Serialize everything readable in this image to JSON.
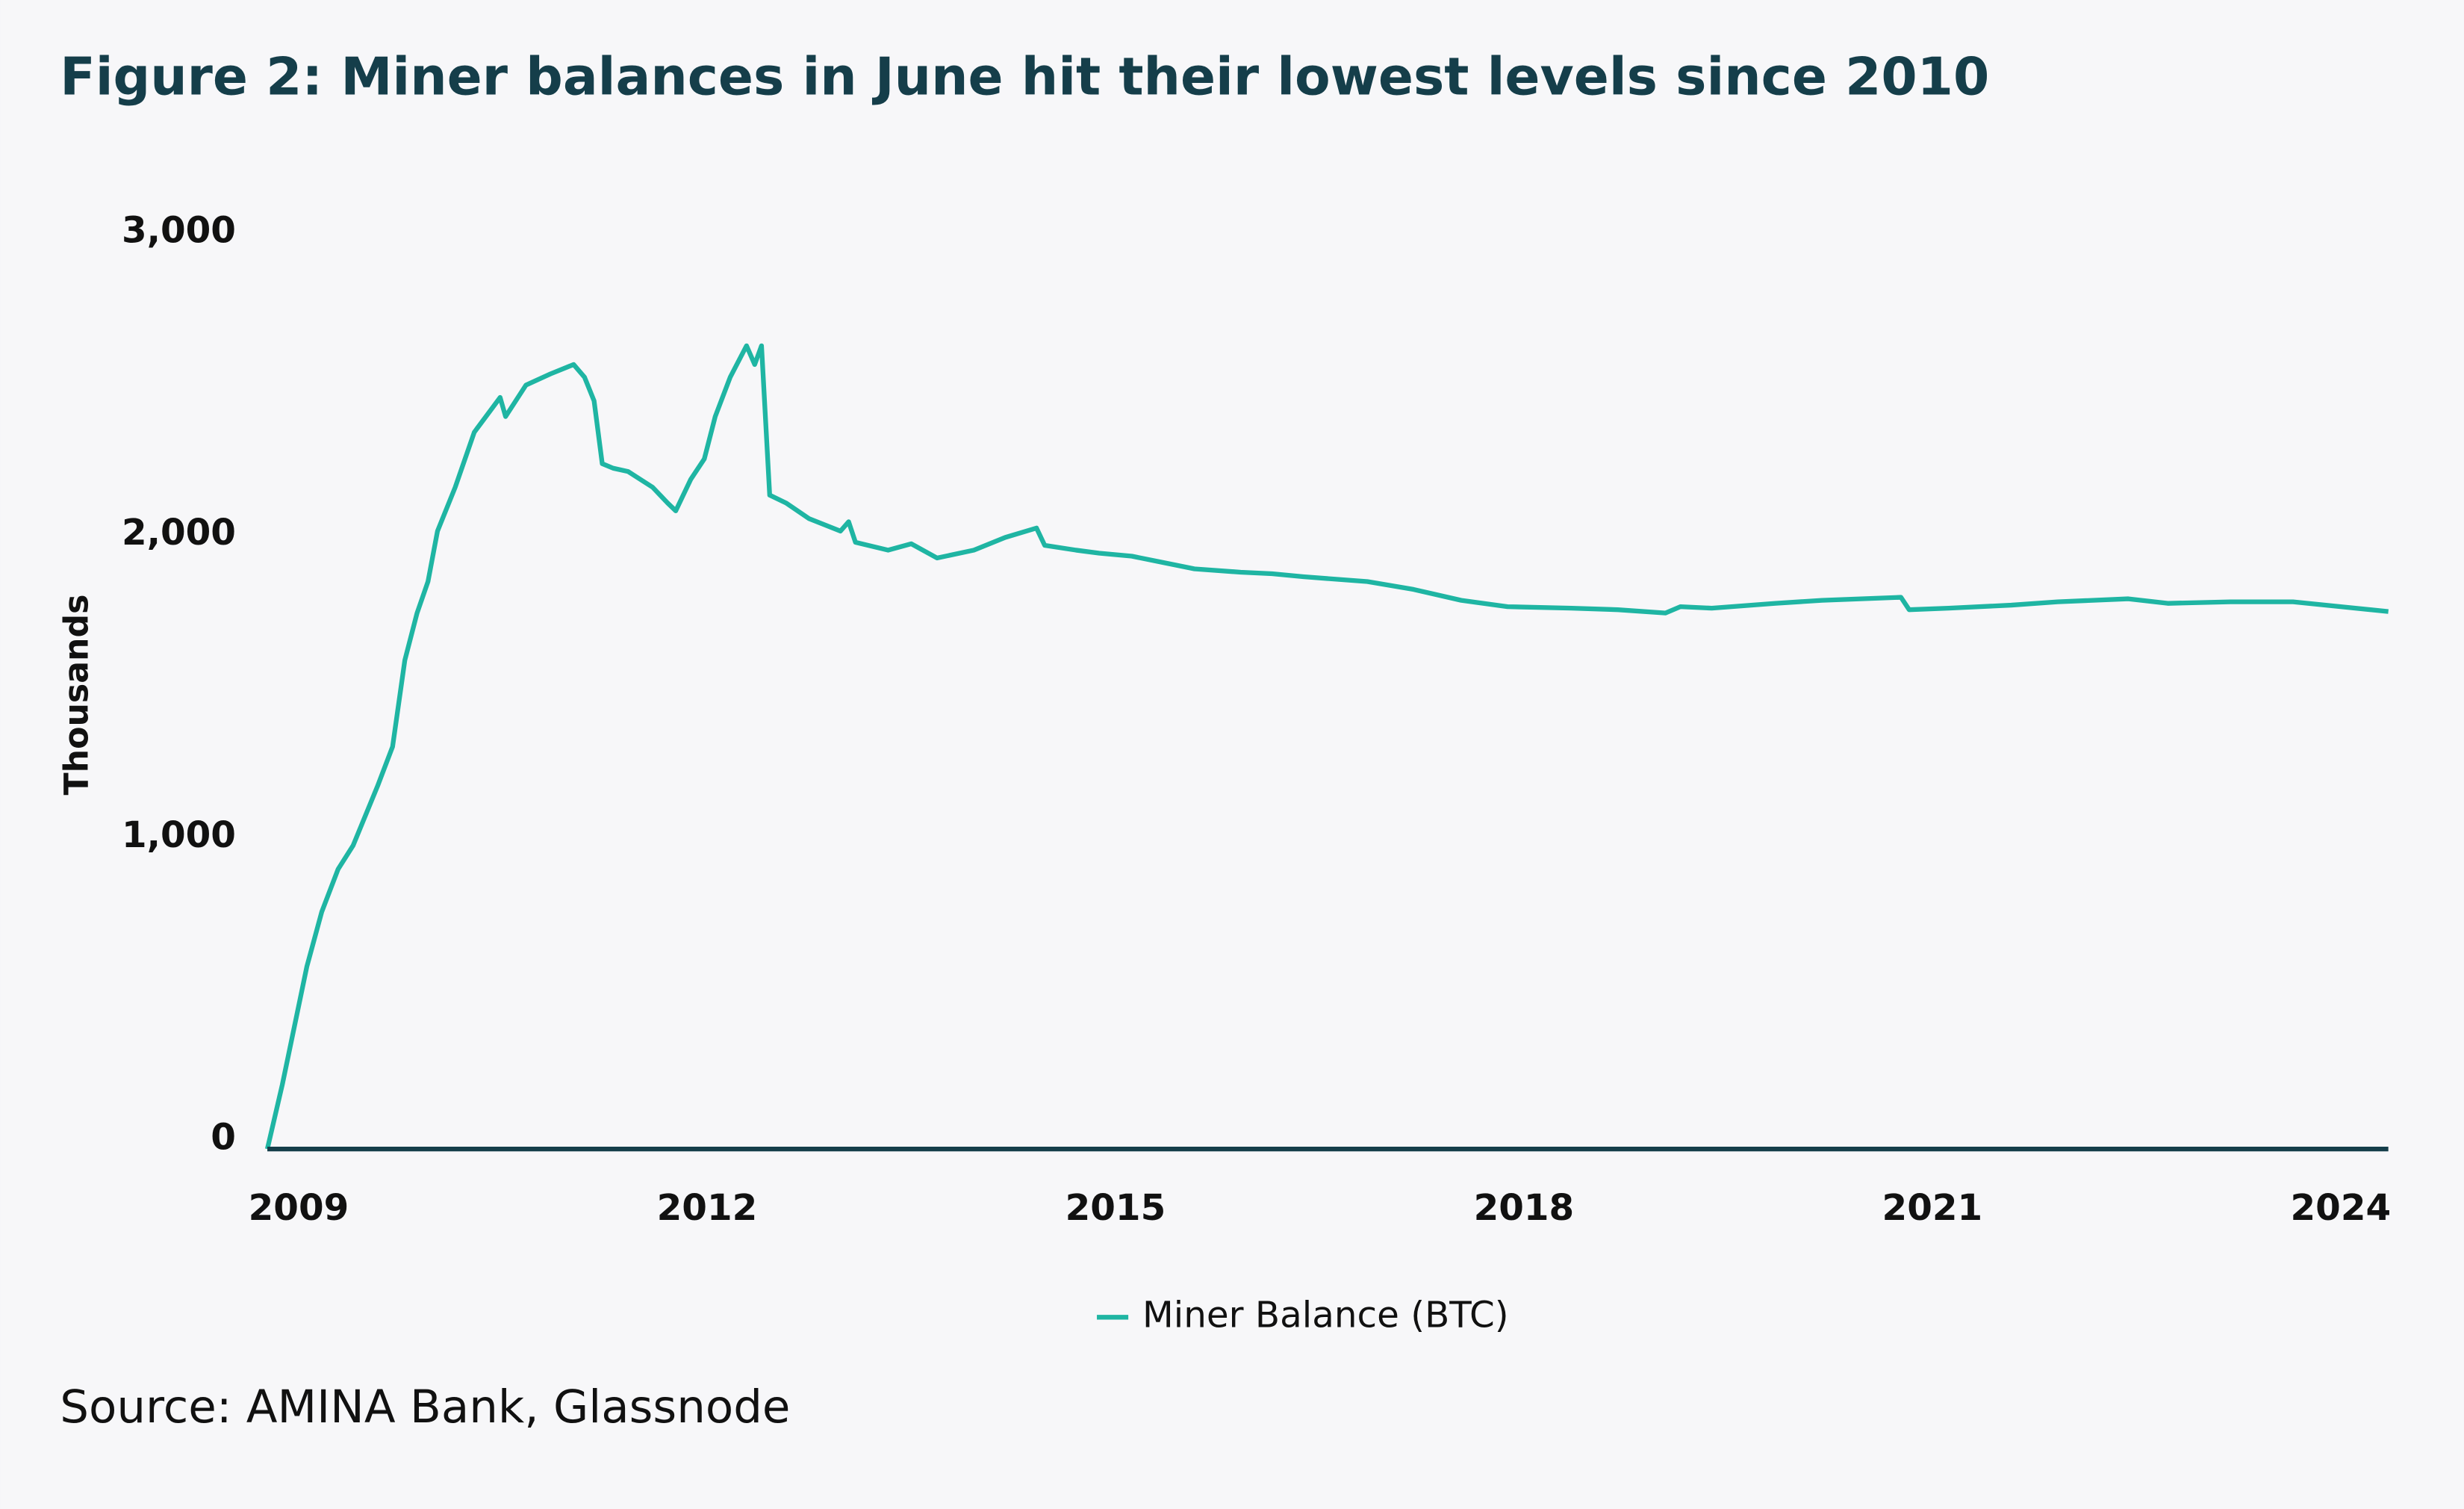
{
  "chart_data": {
    "type": "line",
    "title": "Figure 2: Miner balances in June hit their lowest levels since 2010",
    "y_label": "Thousands",
    "source": "Source: AMINA Bank, Glassnode",
    "x": [
      2008.77,
      2008.88,
      2009.06,
      2009.17,
      2009.29,
      2009.4,
      2009.58,
      2009.69,
      2009.78,
      2009.87,
      2009.95,
      2010.02,
      2010.15,
      2010.29,
      2010.48,
      2010.52,
      2010.67,
      2010.85,
      2011.02,
      2011.1,
      2011.17,
      2011.23,
      2011.31,
      2011.42,
      2011.6,
      2011.71,
      2011.77,
      2011.88,
      2011.98,
      2012.06,
      2012.17,
      2012.29,
      2012.35,
      2012.4,
      2012.46,
      2012.58,
      2012.75,
      2012.98,
      2013.04,
      2013.09,
      2013.33,
      2013.5,
      2013.69,
      2013.96,
      2014.19,
      2014.42,
      2014.48,
      2014.71,
      2014.88,
      2015.12,
      2015.35,
      2015.58,
      2015.92,
      2016.15,
      2016.38,
      2016.85,
      2017.19,
      2017.54,
      2017.88,
      2018.35,
      2018.69,
      2019.04,
      2019.15,
      2019.38,
      2019.85,
      2020.19,
      2020.77,
      2020.83,
      2021.12,
      2021.58,
      2021.92,
      2022.44,
      2022.73,
      2023.19,
      2023.65,
      2024.0,
      2024.35
    ],
    "series": [
      {
        "name": "Miner Balance (BTC)",
        "color": "#1fb5a3",
        "values": [
          0,
          213,
          603,
          785,
          926,
          1004,
          1201,
          1331,
          1617,
          1773,
          1877,
          2044,
          2189,
          2371,
          2486,
          2423,
          2527,
          2564,
          2595,
          2553,
          2475,
          2267,
          2252,
          2241,
          2189,
          2137,
          2111,
          2215,
          2283,
          2423,
          2553,
          2657,
          2595,
          2657,
          2163,
          2137,
          2085,
          2044,
          2075,
          2007,
          1981,
          2002,
          1955,
          1981,
          2023,
          2054,
          1997,
          1981,
          1971,
          1961,
          1940,
          1919,
          1908,
          1903,
          1893,
          1877,
          1851,
          1815,
          1794,
          1789,
          1784,
          1773,
          1794,
          1789,
          1805,
          1815,
          1825,
          1784,
          1789,
          1799,
          1810,
          1820,
          1805,
          1810,
          1810,
          1794,
          1778
        ]
      }
    ],
    "xlim": [
      2008.77,
      2024.35
    ],
    "xticks": [
      2009,
      2012,
      2015,
      2018,
      2021,
      2024
    ],
    "ylim": [
      0,
      3000
    ],
    "yticks": [
      0,
      {
        "value": 1000,
        "label": "1,000"
      },
      {
        "value": 2000,
        "label": "2,000"
      },
      {
        "value": 3000,
        "label": "3,000"
      }
    ]
  }
}
